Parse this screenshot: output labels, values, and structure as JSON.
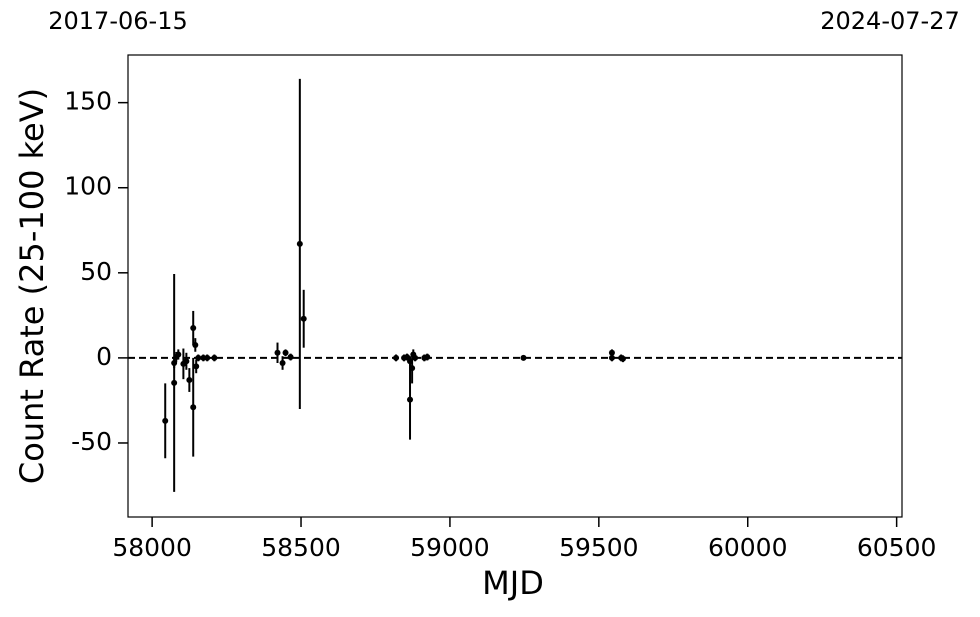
{
  "chart_data": {
    "type": "errorbar",
    "x_label": "MJD",
    "y_label": "Count Rate (25-100 keV)",
    "xlim": [
      57919,
      60518
    ],
    "ylim": [
      -93.5,
      178
    ],
    "xticks": [
      58000,
      58500,
      59000,
      59500,
      60000,
      60500
    ],
    "yticks": [
      -50,
      0,
      50,
      100,
      150
    ],
    "x2ticks": [
      {
        "value": 57919,
        "label": "2017-06-15"
      },
      {
        "value": 60518,
        "label": "2024-07-27"
      }
    ],
    "reference_line": 0,
    "series": [
      {
        "color": "#000000",
        "x": [
          58044,
          58074,
          58074,
          58081,
          58088,
          58105,
          58115,
          58125,
          58138,
          58138,
          58145,
          58148,
          58155,
          58172,
          58185,
          58209,
          58421,
          58438,
          58448,
          58465,
          58496,
          58509,
          58819,
          58846,
          58856,
          58866,
          58866,
          58873,
          58877,
          58883,
          58914,
          58924,
          59247,
          59544,
          59544,
          59575,
          59581
        ],
        "values": [
          -37,
          -14.7,
          -3,
          0.5,
          2,
          -3.5,
          -2,
          -13,
          17.6,
          -29,
          7.6,
          -5,
          0,
          0,
          0,
          0,
          3,
          -3,
          3,
          0.5,
          67,
          23,
          0,
          0,
          0.5,
          -24.5,
          -2,
          -6,
          2,
          0,
          0,
          0.5,
          0,
          3,
          0,
          0,
          -0.5
        ],
        "errors": [
          22,
          64,
          3,
          3,
          3,
          9,
          5,
          7,
          10,
          29,
          4,
          4,
          2,
          2,
          2,
          2,
          6,
          4,
          2,
          2,
          97,
          17,
          2,
          2,
          2,
          23.5,
          3,
          9,
          3,
          2,
          2,
          2,
          1,
          2,
          2,
          2,
          2
        ]
      }
    ]
  }
}
